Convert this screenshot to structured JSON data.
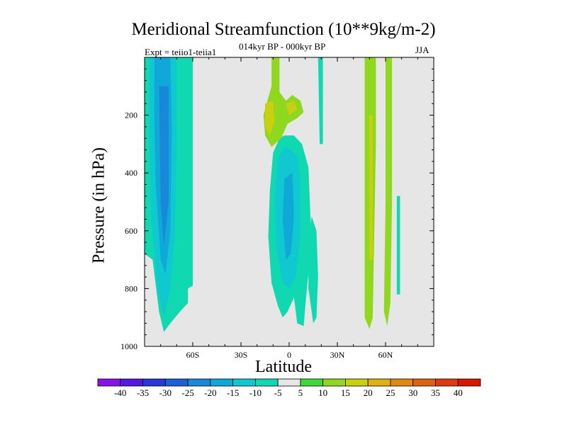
{
  "title": "Meridional Streamfunction (10**9kg/m-2)",
  "subtitle": "014kyr BP - 000kyr BP",
  "experiment": "Expt = teiio1-teiia1",
  "season": "JJA",
  "chart_data": {
    "type": "contour",
    "title": "Meridional Streamfunction (10**9kg/m-2)",
    "xlabel": "Latitude",
    "ylabel": "Pressure (in hPa)",
    "xlim": [
      -90,
      90
    ],
    "ylim": [
      1000,
      0
    ],
    "y_inverted": true,
    "x_ticks": [
      {
        "value": -60,
        "label": "60S"
      },
      {
        "value": -30,
        "label": "30S"
      },
      {
        "value": 0,
        "label": "0"
      },
      {
        "value": 30,
        "label": "30N"
      },
      {
        "value": 60,
        "label": "60N"
      }
    ],
    "y_ticks": [
      200,
      400,
      600,
      800,
      1000
    ],
    "colorbar_levels": [
      -40,
      -35,
      -30,
      -25,
      -20,
      -15,
      -10,
      -5,
      5,
      10,
      15,
      20,
      25,
      30,
      35,
      40
    ],
    "colorbar_colors": [
      "#8a10e8",
      "#5418e0",
      "#2838d8",
      "#1c60d8",
      "#1888d8",
      "#10a8d8",
      "#10c8d0",
      "#10d8b0",
      "#e6e6e6",
      "#40d838",
      "#90d820",
      "#c8d010",
      "#e0b010",
      "#e08810",
      "#e06010",
      "#e03810",
      "#d81800"
    ],
    "colors": {
      "background_fill": "#e6e6e6"
    },
    "features": [
      {
        "level": -10,
        "lat": [
          -90,
          -60
        ],
        "p": [
          0,
          950
        ],
        "label": "southern high-latitude negative cell"
      },
      {
        "level": -25,
        "lat": [
          -80,
          -74
        ],
        "p": [
          100,
          900
        ],
        "label": "southern core minimum"
      },
      {
        "level": -20,
        "lat": [
          -10,
          12
        ],
        "p": [
          270,
          930
        ],
        "label": "equatorial negative cell"
      },
      {
        "level": 10,
        "lat": [
          -16,
          9
        ],
        "p": [
          0,
          300
        ],
        "label": "upper equatorial positive cell"
      },
      {
        "level": 15,
        "lat": [
          -15,
          -10
        ],
        "p": [
          150,
          270
        ],
        "label": "upper positive maximum"
      },
      {
        "level": 10,
        "lat": [
          47,
          64
        ],
        "p": [
          0,
          940
        ],
        "label": "northern positive columns"
      },
      {
        "level": -10,
        "lat": [
          18,
          21
        ],
        "p": [
          0,
          300
        ],
        "label": "upper negative sliver"
      },
      {
        "level": -10,
        "lat": [
          67,
          69
        ],
        "p": [
          480,
          820
        ],
        "label": "northern negative sliver"
      }
    ]
  }
}
